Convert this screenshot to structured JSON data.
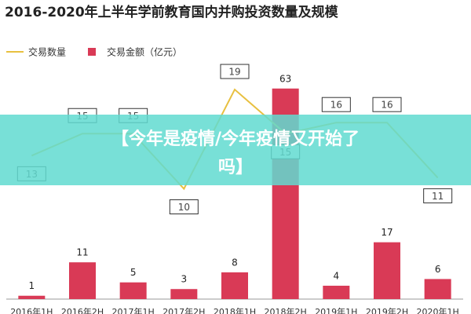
{
  "chart_data": {
    "type": "bar-line",
    "title": "2016-2020年上半年学前教育国内并购投资数量及规模",
    "categories": [
      "2016年1H",
      "2016年2H",
      "2017年1H",
      "2017年2H",
      "2018年1H",
      "2018年2H",
      "2019年1H",
      "2019年2H",
      "2020年1H"
    ],
    "series": [
      {
        "name": "交易数量",
        "type": "line",
        "axis": "y2",
        "color": "#e8c040",
        "values": [
          13,
          15,
          15,
          10,
          19,
          15,
          16,
          16,
          11
        ]
      },
      {
        "name": "交易金额（亿元）",
        "type": "bar",
        "color": "#d93a56",
        "values": [
          1,
          11,
          5,
          3,
          8,
          63,
          4,
          17,
          6
        ]
      }
    ],
    "ylim": [
      0,
      66
    ],
    "y2lim": [
      0,
      20
    ],
    "overlay": [
      "【今年是疫情/今年疫情又开始了",
      "吗】"
    ]
  }
}
